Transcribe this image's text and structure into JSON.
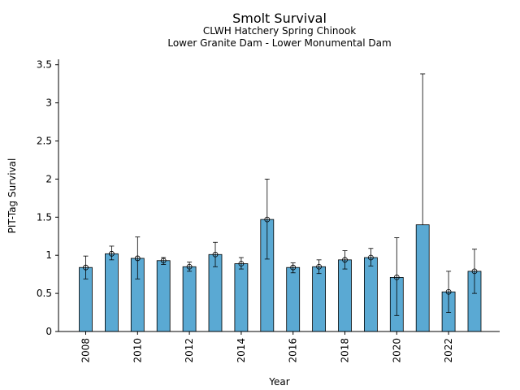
{
  "chart_data": {
    "type": "bar",
    "title": "Smolt Survival",
    "subtitle_1": "CLWH Hatchery Spring Chinook",
    "subtitle_2": "Lower Granite Dam - Lower Monumental Dam",
    "xlabel": "Year",
    "ylabel": "PIT-Tag Survival",
    "ylim": [
      0,
      3.55
    ],
    "yticks": [
      0,
      0.5,
      1,
      1.5,
      2,
      2.5,
      3,
      3.5
    ],
    "ytick_labels": [
      "0",
      "0.5",
      "1",
      "1.5",
      "2",
      "2.5",
      "3",
      "3.5"
    ],
    "xticks": [
      2008,
      2010,
      2012,
      2014,
      2016,
      2018,
      2020,
      2022
    ],
    "xtick_labels": [
      "2008",
      "2010",
      "2012",
      "2014",
      "2016",
      "2018",
      "2020",
      "2022"
    ],
    "grid": false,
    "bar_color": "#5aa9d3",
    "categories": [
      2008,
      2009,
      2010,
      2011,
      2012,
      2013,
      2014,
      2015,
      2016,
      2017,
      2018,
      2019,
      2020,
      2021,
      2022,
      2023
    ],
    "values": [
      0.84,
      1.02,
      0.96,
      0.93,
      0.85,
      1.01,
      0.89,
      1.47,
      0.84,
      0.85,
      0.94,
      0.97,
      0.71,
      1.4,
      0.52,
      0.79
    ],
    "lower": [
      0.69,
      0.94,
      0.69,
      0.88,
      0.79,
      0.85,
      0.82,
      0.95,
      0.77,
      0.76,
      0.82,
      0.86,
      0.21,
      null,
      0.25,
      0.5
    ],
    "upper": [
      0.99,
      1.12,
      1.24,
      0.97,
      0.91,
      1.17,
      0.97,
      2.0,
      0.9,
      0.94,
      1.06,
      1.09,
      1.23,
      3.38,
      0.79,
      1.08
    ],
    "point_marker": [
      true,
      true,
      true,
      true,
      true,
      true,
      true,
      true,
      true,
      true,
      true,
      true,
      true,
      false,
      true,
      true
    ]
  }
}
